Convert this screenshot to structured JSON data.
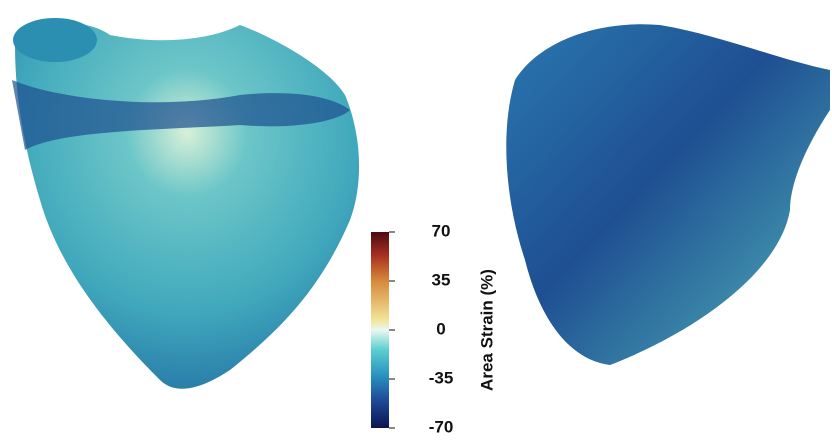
{
  "colorbar": {
    "label": "Area Strain (%)",
    "lim": [
      -70,
      70
    ],
    "ticks": [
      70,
      35,
      0,
      -35,
      -70
    ]
  }
}
